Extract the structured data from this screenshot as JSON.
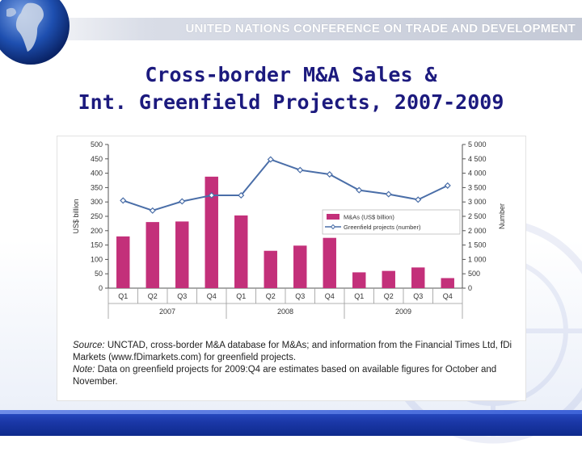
{
  "header": {
    "organization": "UNITED NATIONS CONFERENCE ON TRADE AND DEVELOPMENT"
  },
  "slide": {
    "title_line1": "Cross-border M&A Sales &",
    "title_line2": "Int. Greenfield Projects, 2007-2009"
  },
  "chart_data": {
    "type": "bar",
    "categories": [
      "Q1",
      "Q2",
      "Q3",
      "Q4",
      "Q1",
      "Q2",
      "Q3",
      "Q4",
      "Q1",
      "Q2",
      "Q3",
      "Q4"
    ],
    "years": [
      "2007",
      "2008",
      "2009"
    ],
    "series": [
      {
        "name": "M&As (US$ billion)",
        "kind": "bar",
        "axis": "left",
        "color": "#c3307a",
        "values": [
          180,
          230,
          232,
          388,
          253,
          130,
          148,
          175,
          55,
          60,
          72,
          35
        ]
      },
      {
        "name": "Greenfield projects (number)",
        "kind": "line",
        "axis": "right",
        "color": "#4a6ea8",
        "values": [
          3050,
          2700,
          3020,
          3230,
          3230,
          4480,
          4110,
          3960,
          3410,
          3270,
          3080,
          3570
        ]
      }
    ],
    "ylabel": "US$ billion",
    "y2label": "Number",
    "ylim": [
      0,
      500
    ],
    "y2lim": [
      0,
      5000
    ],
    "yticks": [
      "500",
      "450",
      "400",
      "350",
      "300",
      "250",
      "200",
      "150",
      "100",
      "50",
      "0"
    ],
    "y2ticks": [
      "5 000",
      "4 500",
      "4 000",
      "3 500",
      "3 000",
      "2 500",
      "2 000",
      "1 500",
      "1 000",
      "500",
      "0"
    ],
    "legend_position": "center-right",
    "grid": false
  },
  "caption": {
    "source_label": "Source:",
    "source_text": " UNCTAD, cross-border M&A database for M&As; and information from the Financial Times Ltd, fDi Markets (www.fDimarkets.com) for greenfield projects.",
    "note_label": "Note:",
    "note_text": " Data on greenfield projects for 2009:Q4 are estimates based on available figures for October and November."
  }
}
